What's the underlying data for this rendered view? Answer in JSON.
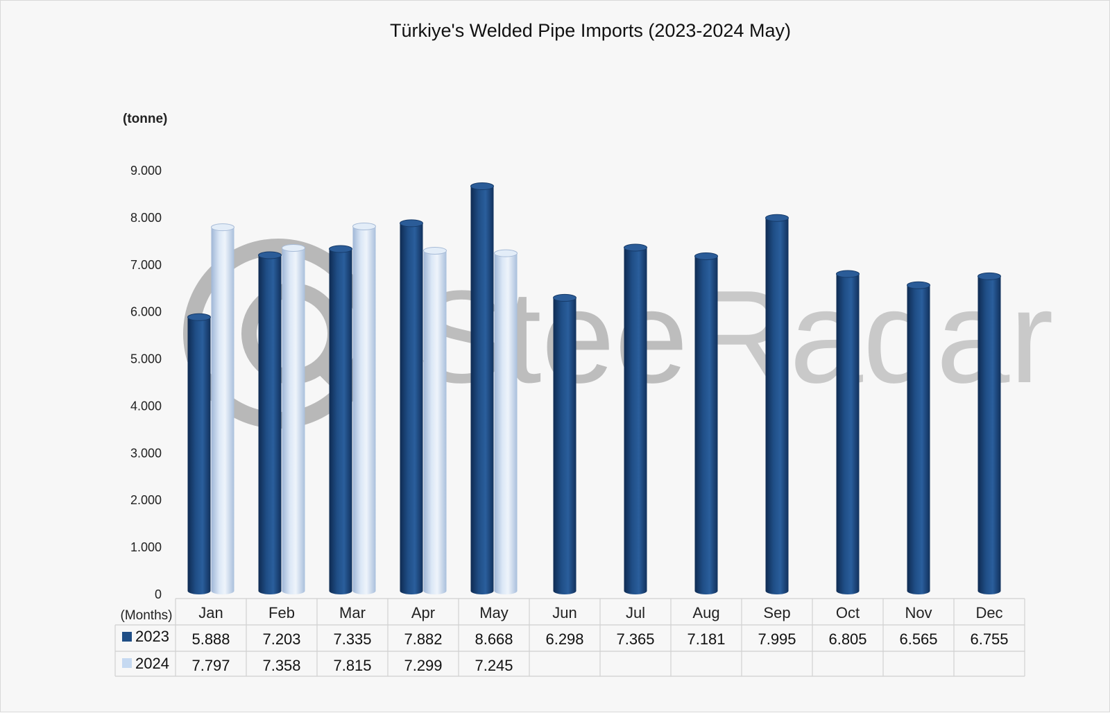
{
  "chart_data": {
    "type": "bar",
    "title": "Türkiye's Welded Pipe Imports (2023-2024 May)",
    "ylabel": "(tonne)",
    "xlabel": "(Months)",
    "ylim": [
      0,
      9000
    ],
    "yticks": [
      "0",
      "1.000",
      "2.000",
      "3.000",
      "4.000",
      "5.000",
      "6.000",
      "7.000",
      "8.000",
      "9.000"
    ],
    "categories": [
      "Jan",
      "Feb",
      "Mar",
      "Apr",
      "May",
      "Jun",
      "Jul",
      "Aug",
      "Sep",
      "Oct",
      "Nov",
      "Dec"
    ],
    "series": [
      {
        "name": "2023",
        "color": "#1f4e86",
        "values": [
          5888,
          7203,
          7335,
          7882,
          8668,
          6298,
          7365,
          7181,
          7995,
          6805,
          6565,
          6755
        ],
        "labels": [
          "5.888",
          "7.203",
          "7.335",
          "7.882",
          "8.668",
          "6.298",
          "7.365",
          "7.181",
          "7.995",
          "6.805",
          "6.565",
          "6.755"
        ]
      },
      {
        "name": "2024",
        "color": "#c5d9f1",
        "values": [
          7797,
          7358,
          7815,
          7299,
          7245,
          null,
          null,
          null,
          null,
          null,
          null,
          null
        ],
        "labels": [
          "7.797",
          "7.358",
          "7.815",
          "7.299",
          "7.245",
          "",
          "",
          "",
          "",
          "",
          "",
          ""
        ]
      }
    ],
    "legend": "data-table",
    "grid": false
  },
  "watermark": {
    "text_bold": "Steel",
    "text_light": "Radar"
  }
}
